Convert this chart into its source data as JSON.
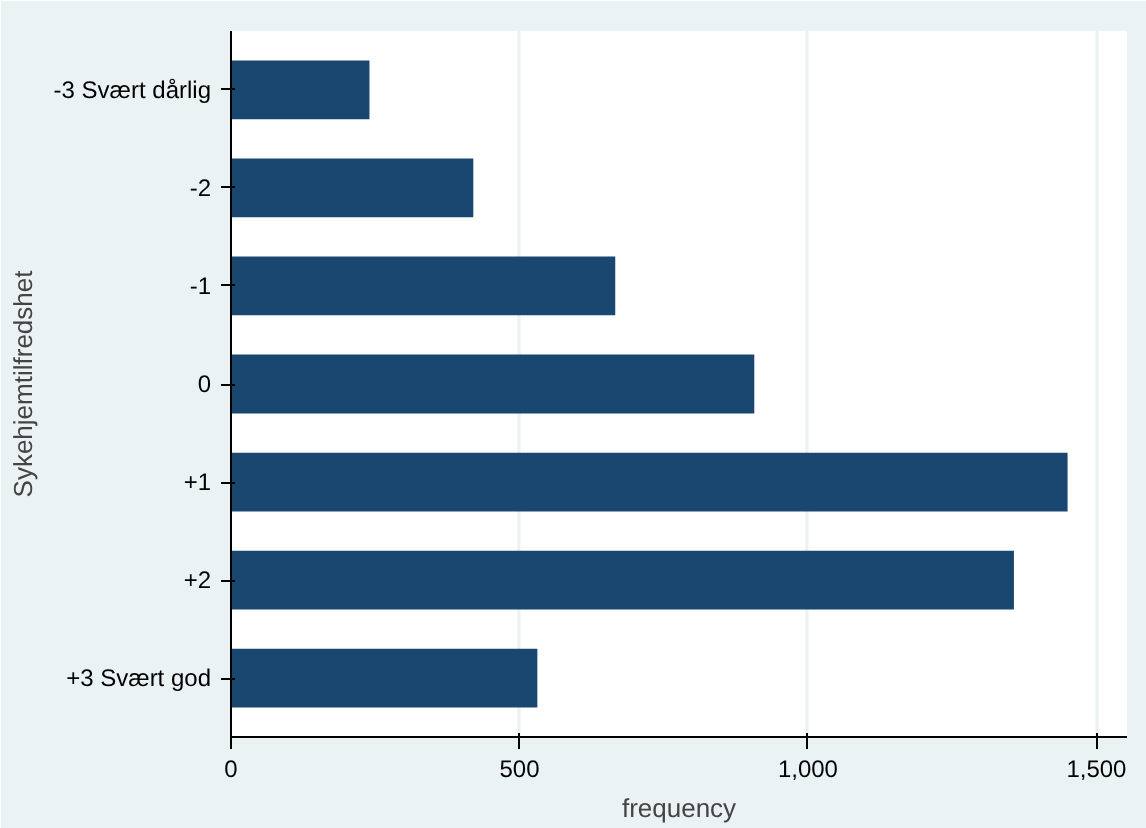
{
  "chart_data": {
    "type": "bar",
    "orientation": "horizontal",
    "ylabel": "Sykehjemtilfredshet",
    "xlabel": "frequency",
    "categories": [
      "-3 Svært dårlig",
      "-2",
      "-1",
      "0",
      "+1",
      "+2",
      "+3 Svært god"
    ],
    "values": [
      240,
      420,
      666,
      907,
      1450,
      1357,
      531
    ],
    "color": "#1a476f",
    "xlim": [
      0,
      1553
    ],
    "xticks": [
      0,
      500,
      {
        "value": 1000,
        "label": "1,000"
      },
      {
        "value": 1500,
        "label": "1,500"
      }
    ],
    "grid": "x"
  }
}
